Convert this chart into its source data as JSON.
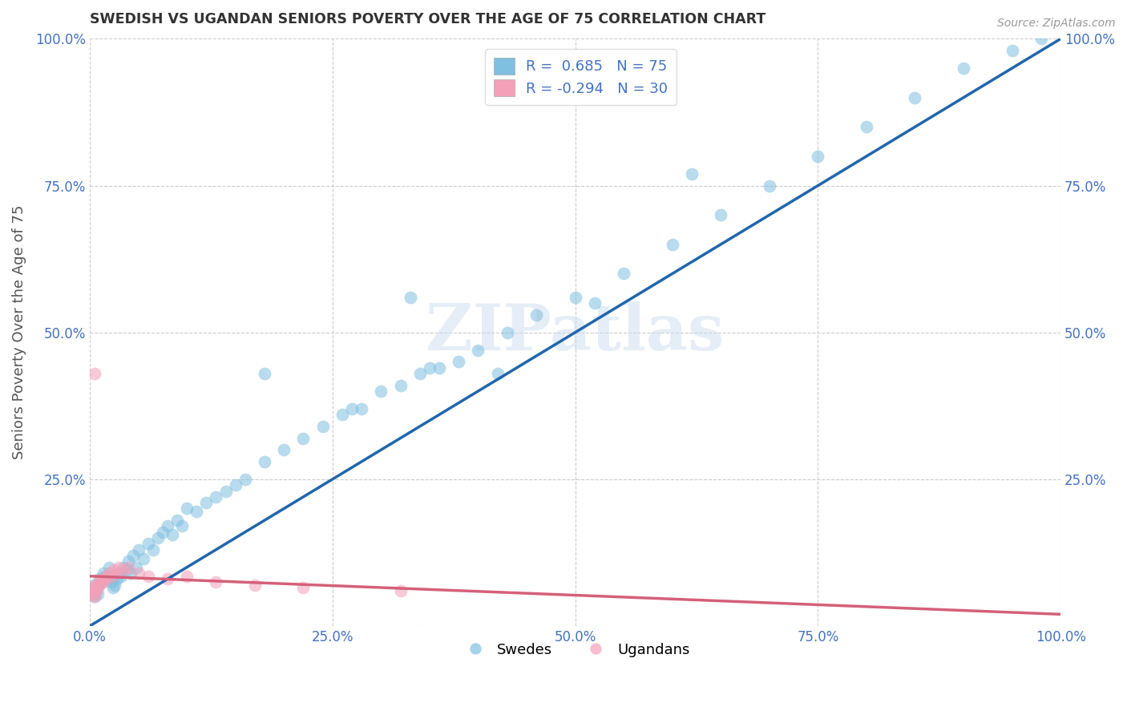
{
  "title": "SWEDISH VS UGANDAN SENIORS POVERTY OVER THE AGE OF 75 CORRELATION CHART",
  "source": "Source: ZipAtlas.com",
  "ylabel": "Seniors Poverty Over the Age of 75",
  "background_color": "#ffffff",
  "grid_color": "#cccccc",
  "blue_color": "#7fbfdf",
  "pink_color": "#f4a0b8",
  "blue_line_color": "#2166ac",
  "pink_line_color": "#d4607a",
  "R_blue": 0.685,
  "N_blue": 75,
  "R_pink": -0.294,
  "N_pink": 30,
  "legend_label_blue": "Swedes",
  "legend_label_pink": "Ugandans",
  "watermark_text": "ZIPatlas",
  "axis_color": "#4472c4",
  "xlim": [
    0.0,
    1.0
  ],
  "ylim": [
    0.0,
    1.0
  ],
  "xticks": [
    0.0,
    0.25,
    0.5,
    0.75,
    1.0
  ],
  "yticks": [
    0.0,
    0.25,
    0.5,
    0.75,
    1.0
  ],
  "xticklabels": [
    "0.0%",
    "25.0%",
    "50.0%",
    "75.0%",
    "100.0%"
  ],
  "yticklabels_left": [
    "",
    "25.0%",
    "50.0%",
    "75.0%",
    "100.0%"
  ],
  "yticklabels_right": [
    "",
    "25.0%",
    "50.0%",
    "75.0%",
    "100.0%"
  ],
  "swedes_x": [
    0.002,
    0.003,
    0.004,
    0.005,
    0.006,
    0.007,
    0.008,
    0.009,
    0.01,
    0.012,
    0.014,
    0.016,
    0.018,
    0.02,
    0.022,
    0.024,
    0.026,
    0.028,
    0.03,
    0.032,
    0.035,
    0.038,
    0.04,
    0.042,
    0.045,
    0.048,
    0.05,
    0.055,
    0.06,
    0.065,
    0.07,
    0.075,
    0.08,
    0.085,
    0.09,
    0.095,
    0.1,
    0.11,
    0.12,
    0.13,
    0.14,
    0.15,
    0.16,
    0.18,
    0.2,
    0.22,
    0.24,
    0.26,
    0.28,
    0.3,
    0.32,
    0.34,
    0.36,
    0.38,
    0.4,
    0.43,
    0.46,
    0.5,
    0.55,
    0.6,
    0.65,
    0.7,
    0.75,
    0.8,
    0.85,
    0.9,
    0.95,
    0.98,
    0.62,
    0.33,
    0.18,
    0.27,
    0.35,
    0.42,
    0.52
  ],
  "swedes_y": [
    0.06,
    0.055,
    0.07,
    0.05,
    0.065,
    0.06,
    0.055,
    0.07,
    0.08,
    0.075,
    0.09,
    0.085,
    0.08,
    0.1,
    0.075,
    0.065,
    0.07,
    0.08,
    0.09,
    0.085,
    0.1,
    0.095,
    0.11,
    0.09,
    0.12,
    0.1,
    0.13,
    0.115,
    0.14,
    0.13,
    0.15,
    0.16,
    0.17,
    0.155,
    0.18,
    0.17,
    0.2,
    0.195,
    0.21,
    0.22,
    0.23,
    0.24,
    0.25,
    0.28,
    0.3,
    0.32,
    0.34,
    0.36,
    0.37,
    0.4,
    0.41,
    0.43,
    0.44,
    0.45,
    0.47,
    0.5,
    0.53,
    0.56,
    0.6,
    0.65,
    0.7,
    0.75,
    0.8,
    0.85,
    0.9,
    0.95,
    0.98,
    1.0,
    0.77,
    0.56,
    0.43,
    0.37,
    0.44,
    0.43,
    0.55
  ],
  "ugandans_x": [
    0.001,
    0.002,
    0.003,
    0.004,
    0.005,
    0.006,
    0.007,
    0.008,
    0.009,
    0.01,
    0.012,
    0.014,
    0.016,
    0.018,
    0.02,
    0.022,
    0.025,
    0.028,
    0.03,
    0.035,
    0.04,
    0.05,
    0.06,
    0.08,
    0.1,
    0.13,
    0.17,
    0.22,
    0.32,
    0.005
  ],
  "ugandans_y": [
    0.055,
    0.06,
    0.065,
    0.055,
    0.05,
    0.07,
    0.06,
    0.065,
    0.07,
    0.075,
    0.08,
    0.075,
    0.08,
    0.085,
    0.09,
    0.085,
    0.095,
    0.09,
    0.1,
    0.095,
    0.1,
    0.09,
    0.085,
    0.08,
    0.085,
    0.075,
    0.07,
    0.065,
    0.06,
    0.43
  ],
  "blue_line_x": [
    0.0,
    1.0
  ],
  "blue_line_y": [
    0.0,
    1.0
  ],
  "pink_line_x": [
    0.0,
    1.0
  ],
  "pink_line_y": [
    0.085,
    0.02
  ]
}
